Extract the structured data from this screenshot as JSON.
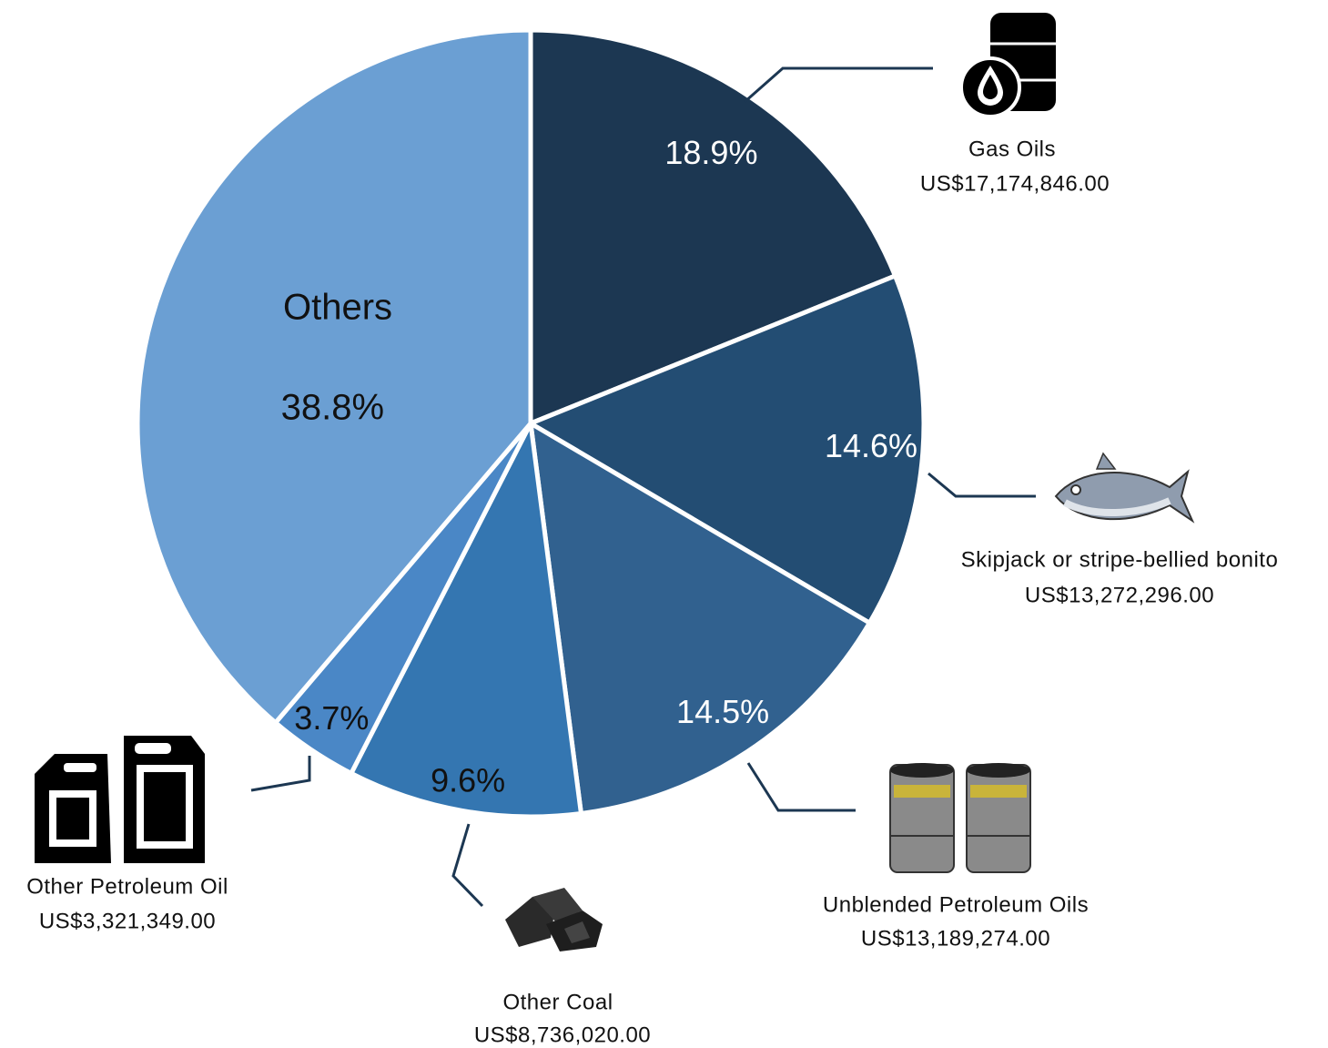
{
  "chart_data": {
    "type": "pie",
    "categories": [
      "Gas Oils",
      "Skipjack or stripe-bellied bonito",
      "Unblended Petroleum Oils",
      "Other Coal",
      "Other Petroleum Oil",
      "Others"
    ],
    "values": [
      18.9,
      14.6,
      14.5,
      9.6,
      3.7,
      38.8
    ],
    "value_labels": [
      "18.9%",
      "14.6%",
      "14.5%",
      "9.6%",
      "3.7%",
      "38.8%"
    ],
    "amounts": [
      "US$17,174,846.00",
      "US$13,272,296.00",
      "US$13,189,274.00",
      "US$8,736,020.00",
      "US$3,321,349.00",
      null
    ],
    "colors": [
      "#1c3752",
      "#234d73",
      "#31618f",
      "#3476b1",
      "#4a87c6",
      "#6b9fd3"
    ],
    "label_colors": [
      "#ffffff",
      "#ffffff",
      "#ffffff",
      "#111111",
      "#111111",
      "#111111"
    ]
  }
}
